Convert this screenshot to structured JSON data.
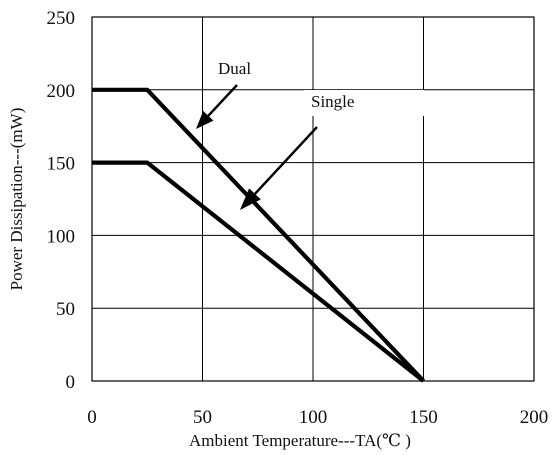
{
  "chart_data": {
    "type": "line",
    "xlabel": "Ambient Temperature---TA(℃ )",
    "ylabel": "Power Dissipation---(mW)",
    "xlim": [
      0,
      200
    ],
    "ylim": [
      0,
      250
    ],
    "x_ticks": [
      "0",
      "50",
      "100",
      "150",
      "200"
    ],
    "y_ticks": [
      "0",
      "50",
      "100",
      "150",
      "200",
      "250"
    ],
    "grid": true,
    "series": [
      {
        "name": "Dual",
        "x": [
          0,
          25,
          150
        ],
        "y": [
          200,
          200,
          0
        ]
      },
      {
        "name": "Single",
        "x": [
          0,
          25,
          150
        ],
        "y": [
          150,
          150,
          0
        ]
      }
    ],
    "annotations": [
      {
        "text": "Dual",
        "points_to_series": "Dual"
      },
      {
        "text": "Single",
        "points_to_series": "Single"
      }
    ],
    "colors": {
      "line": "#000000",
      "grid": "#000000",
      "background": "#ffffff"
    }
  }
}
